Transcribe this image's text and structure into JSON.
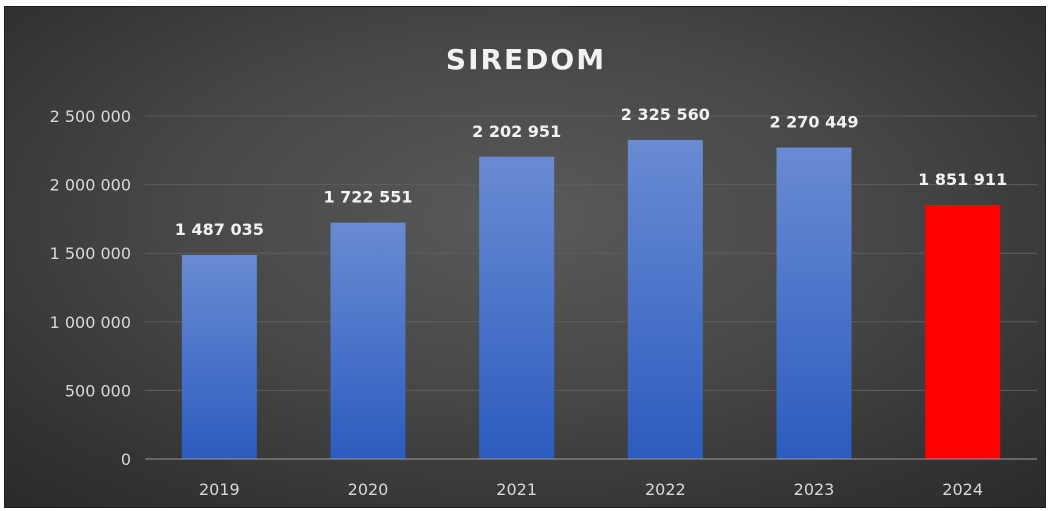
{
  "chart_data": {
    "type": "bar",
    "title": "SIREDOM",
    "categories": [
      "2019",
      "2020",
      "2021",
      "2022",
      "2023",
      "2024"
    ],
    "values": [
      1487035,
      1722551,
      2202951,
      2325560,
      2270449,
      1851911
    ],
    "value_labels": [
      "1 487 035",
      "1 722 551",
      "2 202 951",
      "2 325 560",
      "2 270 449",
      "1 851 911"
    ],
    "ylim": [
      0,
      2500000
    ],
    "yticks": [
      0,
      500000,
      1000000,
      1500000,
      2000000,
      2500000
    ],
    "ytick_labels": [
      "0",
      "500 000",
      "1 000 000",
      "1 500 000",
      "2 000 000",
      "2 500 000"
    ],
    "grid": true,
    "legend": "none",
    "bar_colors": [
      "#4a72c8",
      "#4a72c8",
      "#4a72c8",
      "#4a72c8",
      "#4a72c8",
      "#ff0000"
    ]
  }
}
